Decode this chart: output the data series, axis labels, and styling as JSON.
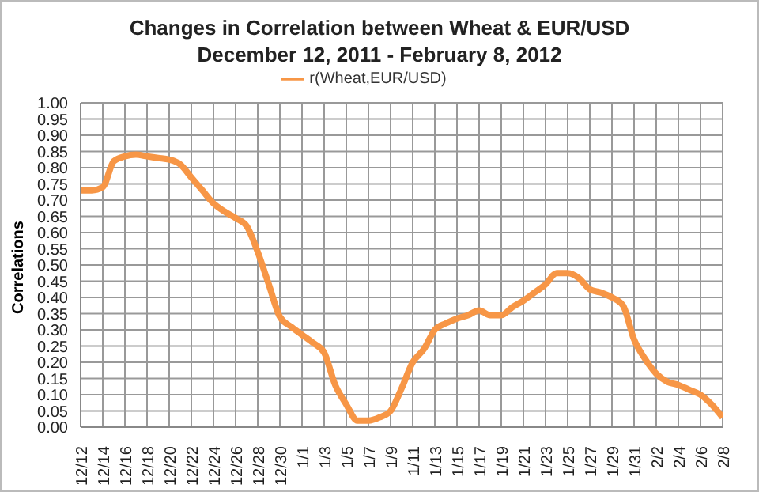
{
  "chart_data": {
    "type": "line",
    "title": "Changes in Correlation between Wheat  &  EUR/USD",
    "subtitle": "December 12, 2011 - February 8, 2012",
    "ylabel": "Correlations",
    "categories": [
      "12/12",
      null,
      "12/14",
      null,
      "12/16",
      null,
      "12/18",
      null,
      "12/20",
      null,
      "12/22",
      null,
      "12/24",
      null,
      "12/26",
      null,
      "12/28",
      null,
      "12/30",
      null,
      "1/1",
      null,
      "1/3",
      null,
      "1/5",
      null,
      "1/7",
      null,
      "1/9",
      null,
      "1/11",
      null,
      "1/13",
      null,
      "1/15",
      null,
      "1/17",
      null,
      "1/19",
      null,
      "1/21",
      null,
      "1/23",
      null,
      "1/25",
      null,
      "1/27",
      null,
      "1/29",
      null,
      "1/31",
      null,
      "2/2",
      null,
      "2/4",
      null,
      "2/6",
      null,
      "2/8"
    ],
    "series": [
      {
        "name": "r(Wheat,EUR/USD)",
        "color": "#f79646",
        "values": [
          0.73,
          0.73,
          0.74,
          0.82,
          0.835,
          0.84,
          0.835,
          0.83,
          0.825,
          0.81,
          0.77,
          0.73,
          0.69,
          0.665,
          0.645,
          0.62,
          0.54,
          0.44,
          0.34,
          0.31,
          0.285,
          0.26,
          0.23,
          0.13,
          0.07,
          0.02,
          0.02,
          0.03,
          0.05,
          0.12,
          0.2,
          0.24,
          0.3,
          0.32,
          0.335,
          0.345,
          0.36,
          0.345,
          0.345,
          0.37,
          0.39,
          0.415,
          0.44,
          0.475,
          0.475,
          0.46,
          0.425,
          0.415,
          0.4,
          0.375,
          0.27,
          0.21,
          0.165,
          0.14,
          0.13,
          0.115,
          0.1,
          0.07,
          0.03
        ]
      }
    ],
    "ylim": [
      0,
      1
    ],
    "yticks": [
      {
        "value": 0,
        "label": "0.00"
      },
      {
        "value": 0.05,
        "label": "0.05"
      },
      {
        "value": 0.1,
        "label": "0.10"
      },
      {
        "value": 0.15,
        "label": "0.15"
      },
      {
        "value": 0.2,
        "label": "0.20"
      },
      {
        "value": 0.25,
        "label": "0.25"
      },
      {
        "value": 0.3,
        "label": "0.30"
      },
      {
        "value": 0.35,
        "label": "0.35"
      },
      {
        "value": 0.4,
        "label": "0.40"
      },
      {
        "value": 0.45,
        "label": "0.45"
      },
      {
        "value": 0.5,
        "label": "0.50"
      },
      {
        "value": 0.55,
        "label": "0.55"
      },
      {
        "value": 0.6,
        "label": "0.60"
      },
      {
        "value": 0.65,
        "label": "0.65"
      },
      {
        "value": 0.7,
        "label": "0.70"
      },
      {
        "value": 0.75,
        "label": "0.75"
      },
      {
        "value": 0.8,
        "label": "0.80"
      },
      {
        "value": 0.85,
        "label": "0.85"
      },
      {
        "value": 0.9,
        "label": "0.90"
      },
      {
        "value": 0.95,
        "label": "0.95"
      },
      {
        "value": 1,
        "label": "1.00"
      }
    ],
    "grid": true,
    "legend": "top",
    "marker": "none",
    "line_style": "solid"
  }
}
